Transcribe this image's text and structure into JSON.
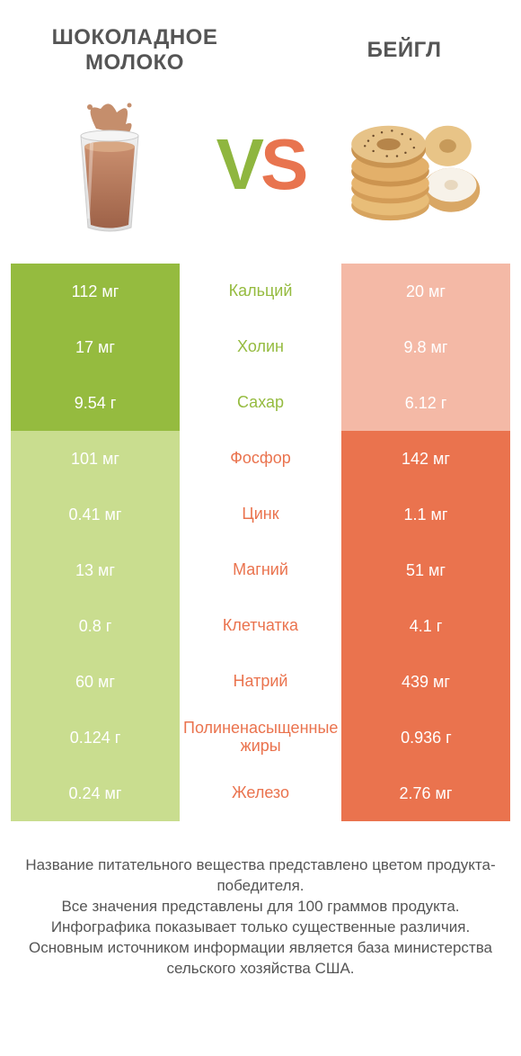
{
  "colors": {
    "left_win": "#95bb3f",
    "left_lose": "#c9dd8f",
    "right_win": "#ea734e",
    "right_lose": "#f4b9a6",
    "label_left_win": "#95bb3f",
    "label_right_win": "#ea734e",
    "title_text": "#555555",
    "footer_text": "#555555"
  },
  "header": {
    "left_title": "ШОКОЛАДНОЕ МОЛОКО",
    "right_title": "БЕЙГЛ"
  },
  "vs": {
    "v": "V",
    "s": "S"
  },
  "rows": [
    {
      "label": "Кальций",
      "left": "112 мг",
      "right": "20 мг",
      "winner": "left"
    },
    {
      "label": "Холин",
      "left": "17 мг",
      "right": "9.8 мг",
      "winner": "left"
    },
    {
      "label": "Сахар",
      "left": "9.54 г",
      "right": "6.12 г",
      "winner": "left"
    },
    {
      "label": "Фосфор",
      "left": "101 мг",
      "right": "142 мг",
      "winner": "right"
    },
    {
      "label": "Цинк",
      "left": "0.41 мг",
      "right": "1.1 мг",
      "winner": "right"
    },
    {
      "label": "Магний",
      "left": "13 мг",
      "right": "51 мг",
      "winner": "right"
    },
    {
      "label": "Клетчатка",
      "left": "0.8 г",
      "right": "4.1 г",
      "winner": "right"
    },
    {
      "label": "Натрий",
      "left": "60 мг",
      "right": "439 мг",
      "winner": "right"
    },
    {
      "label": "Полиненасыщенные жиры",
      "left": "0.124 г",
      "right": "0.936 г",
      "winner": "right"
    },
    {
      "label": "Железо",
      "left": "0.24 мг",
      "right": "2.76 мг",
      "winner": "right"
    }
  ],
  "footer_lines": [
    "Название питательного вещества представлено цветом продукта-победителя.",
    "Все значения представлены для 100 граммов продукта.",
    "Инфографика показывает только существенные различия.",
    "Основным источником информации является база министерства сельского хозяйства США."
  ]
}
